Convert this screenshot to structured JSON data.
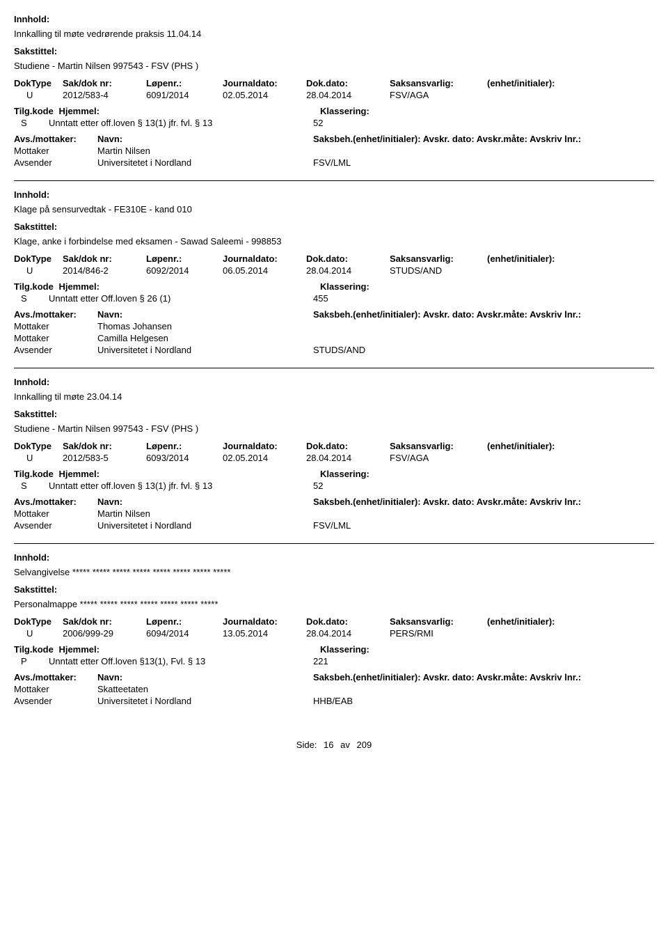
{
  "labels": {
    "innhold": "Innhold:",
    "sakstittel": "Sakstittel:",
    "doktype": "DokType",
    "sakdok": "Sak/dok nr:",
    "lopenr": "Løpenr.:",
    "journaldato": "Journaldato:",
    "dokdato": "Dok.dato:",
    "saksansvarlig": "Saksansvarlig:",
    "enhet": "(enhet/initialer):",
    "tilgkode": "Tilg.kode",
    "hjemmel": "Hjemmel:",
    "klassering": "Klassering:",
    "avsmottaker": "Avs./mottaker:",
    "navn": "Navn:",
    "saksbeh": "Saksbeh.(enhet/initialer): Avskr. dato:  Avskr.måte:  Avskriv lnr.:"
  },
  "entries": [
    {
      "innhold": "Innkalling til møte vedrørende praksis 11.04.14",
      "sakstittel": "Studiene - Martin Nilsen 997543 - FSV (PHS )",
      "doktype": "U",
      "sakdok": "2012/583-4",
      "lopenr": "6091/2014",
      "journaldato": "02.05.2014",
      "dokdato": "28.04.2014",
      "saksansvarlig": "FSV/AGA",
      "tilgkode": "S",
      "hjemmel": "Unntatt etter off.loven § 13(1) jfr. fvl. § 13",
      "klassering": "52",
      "parties": [
        {
          "role": "Mottaker",
          "name": "Martin Nilsen",
          "unit": ""
        },
        {
          "role": "Avsender",
          "name": "Universitetet i Nordland",
          "unit": "FSV/LML"
        }
      ]
    },
    {
      "innhold": "Klage på sensurvedtak - FE310E - kand 010",
      "sakstittel": "Klage, anke i forbindelse med eksamen - Sawad Saleemi - 998853",
      "doktype": "U",
      "sakdok": "2014/846-2",
      "lopenr": "6092/2014",
      "journaldato": "06.05.2014",
      "dokdato": "28.04.2014",
      "saksansvarlig": "STUDS/AND",
      "tilgkode": "S",
      "hjemmel": "Unntatt etter Off.loven § 26 (1)",
      "klassering": "455",
      "parties": [
        {
          "role": "Mottaker",
          "name": "Thomas Johansen",
          "unit": ""
        },
        {
          "role": "Mottaker",
          "name": "Camilla Helgesen",
          "unit": ""
        },
        {
          "role": "Avsender",
          "name": "Universitetet i Nordland",
          "unit": "STUDS/AND"
        }
      ]
    },
    {
      "innhold": "Innkalling til møte 23.04.14",
      "sakstittel": "Studiene - Martin Nilsen 997543 - FSV (PHS )",
      "doktype": "U",
      "sakdok": "2012/583-5",
      "lopenr": "6093/2014",
      "journaldato": "02.05.2014",
      "dokdato": "28.04.2014",
      "saksansvarlig": "FSV/AGA",
      "tilgkode": "S",
      "hjemmel": "Unntatt etter off.loven § 13(1) jfr. fvl. § 13",
      "klassering": "52",
      "parties": [
        {
          "role": "Mottaker",
          "name": "Martin Nilsen",
          "unit": ""
        },
        {
          "role": "Avsender",
          "name": "Universitetet i Nordland",
          "unit": "FSV/LML"
        }
      ]
    },
    {
      "innhold": "Selvangivelse ***** ***** ***** ***** ***** ***** ***** *****",
      "sakstittel": "Personalmappe ***** ***** ***** ***** ***** ***** *****",
      "doktype": "U",
      "sakdok": "2006/999-29",
      "lopenr": "6094/2014",
      "journaldato": "13.05.2014",
      "dokdato": "28.04.2014",
      "saksansvarlig": "PERS/RMI",
      "tilgkode": "P",
      "hjemmel": "Unntatt etter Off.loven §13(1), Fvl. § 13",
      "klassering": "221",
      "parties": [
        {
          "role": "Mottaker",
          "name": "Skatteetaten",
          "unit": ""
        },
        {
          "role": "Avsender",
          "name": "Universitetet i Nordland",
          "unit": "HHB/EAB"
        }
      ]
    }
  ],
  "footer": {
    "label": "Side:",
    "current": "16",
    "sep": "av",
    "total": "209"
  }
}
